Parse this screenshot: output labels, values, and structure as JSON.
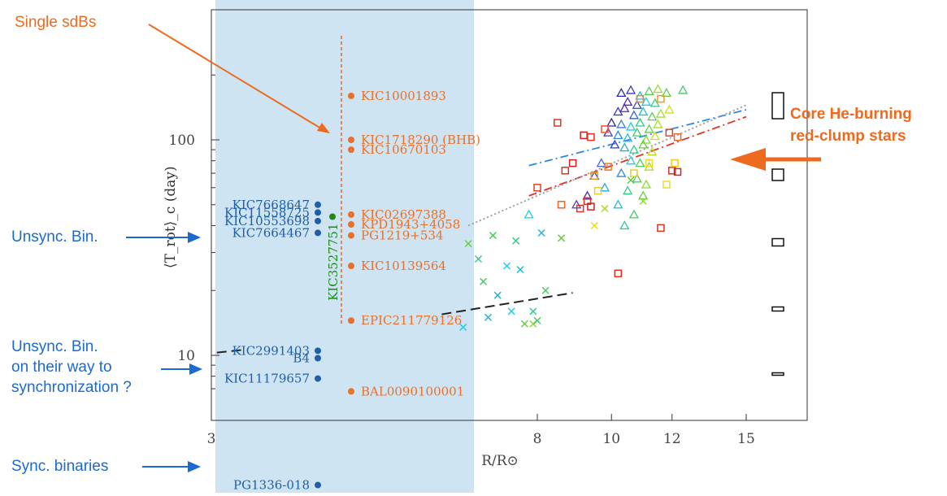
{
  "chart_data": {
    "type": "scatter",
    "xlabel": "R/R⊙",
    "ylabel": "⟨T_rot⟩_c (day)",
    "xscale": "log",
    "yscale": "log",
    "xlim": [
      3,
      18
    ],
    "ylim": [
      6.5,
      190
    ],
    "x_ticks": [
      {
        "value": 3,
        "label": "3"
      },
      {
        "value": 8,
        "label": "8"
      },
      {
        "value": 10,
        "label": "10"
      },
      {
        "value": 12,
        "label": "12"
      },
      {
        "value": 15,
        "label": "15"
      }
    ],
    "x_tick_suffix_label": "R/R⊙",
    "y_ticks": [
      {
        "value": 10,
        "label": "10"
      },
      {
        "value": 100,
        "label": "100"
      }
    ],
    "grid": false,
    "legend": "none",
    "highlight_band_color": "#cfe4f2",
    "single_sdbs": {
      "color": "#e8702a",
      "x_position_label": "sdB column",
      "stars": [
        {
          "name": "KIC10001893",
          "period": 160
        },
        {
          "name": "KIC1718290 (BHB)",
          "period": 100
        },
        {
          "name": "KIC10670103",
          "period": 90
        },
        {
          "name": "KIC02697388",
          "period": 45
        },
        {
          "name": "KPD1943+4058",
          "period": 40.5
        },
        {
          "name": "PG1219+534",
          "period": 36
        },
        {
          "name": "KIC10139564",
          "period": 26
        },
        {
          "name": "EPIC211779126",
          "period": 14.5
        },
        {
          "name": "BAL0090100001",
          "period": 6.8
        }
      ]
    },
    "binaries": {
      "color": "#1f5fa8",
      "stars": [
        {
          "name": "KIC7668647",
          "period": 50
        },
        {
          "name": "KIC11558725",
          "period": 46
        },
        {
          "name": "KIC10553698",
          "period": 42
        },
        {
          "name": "KIC7664467",
          "period": 37
        },
        {
          "name": "KIC2991403",
          "period": 10.5
        },
        {
          "name": "B4",
          "period": 9.7
        },
        {
          "name": "KIC11179657",
          "period": 7.8
        },
        {
          "name": "PG1336-018",
          "period": 2.5
        }
      ]
    },
    "green_star": {
      "name": "KIC3527751",
      "period": 44,
      "color": "#1a8a1a"
    },
    "red_clump_points": [
      {
        "x": 10.3,
        "y": 165,
        "m": "t",
        "c": "#2a2aa0"
      },
      {
        "x": 10.6,
        "y": 170,
        "m": "t",
        "c": "#3a3ac8"
      },
      {
        "x": 10.9,
        "y": 160,
        "m": "t",
        "c": "#22bbdd"
      },
      {
        "x": 11.2,
        "y": 168,
        "m": "t",
        "c": "#55cc55"
      },
      {
        "x": 11.5,
        "y": 172,
        "m": "t",
        "c": "#99dd33"
      },
      {
        "x": 11.8,
        "y": 165,
        "m": "t",
        "c": "#66cc44"
      },
      {
        "x": 12.4,
        "y": 170,
        "m": "t",
        "c": "#44cc66"
      },
      {
        "x": 10.5,
        "y": 150,
        "m": "t",
        "c": "#5a2ab0"
      },
      {
        "x": 10.8,
        "y": 145,
        "m": "t",
        "c": "#2a4ad0"
      },
      {
        "x": 11.1,
        "y": 150,
        "m": "t",
        "c": "#22ccee"
      },
      {
        "x": 11.4,
        "y": 148,
        "m": "t",
        "c": "#33cc88"
      },
      {
        "x": 10.2,
        "y": 135,
        "m": "t",
        "c": "#3a3ac8"
      },
      {
        "x": 10.4,
        "y": 140,
        "m": "t",
        "c": "#5a2ab0"
      },
      {
        "x": 10.7,
        "y": 130,
        "m": "t",
        "c": "#2a6ae0"
      },
      {
        "x": 11.0,
        "y": 135,
        "m": "t",
        "c": "#22bbdd"
      },
      {
        "x": 11.3,
        "y": 128,
        "m": "t",
        "c": "#55cc55"
      },
      {
        "x": 11.6,
        "y": 132,
        "m": "t",
        "c": "#99dd33"
      },
      {
        "x": 11.9,
        "y": 138,
        "m": "t",
        "c": "#ccdd22"
      },
      {
        "x": 10.0,
        "y": 120,
        "m": "t",
        "c": "#2a2aa0"
      },
      {
        "x": 10.3,
        "y": 118,
        "m": "t",
        "c": "#3a7ae0"
      },
      {
        "x": 10.6,
        "y": 115,
        "m": "t",
        "c": "#22ccee"
      },
      {
        "x": 10.9,
        "y": 120,
        "m": "t",
        "c": "#33cc88"
      },
      {
        "x": 11.2,
        "y": 112,
        "m": "t",
        "c": "#66cc44"
      },
      {
        "x": 11.5,
        "y": 118,
        "m": "t",
        "c": "#aadd22"
      },
      {
        "x": 9.9,
        "y": 108,
        "m": "t",
        "c": "#4a3ac0"
      },
      {
        "x": 10.2,
        "y": 105,
        "m": "t",
        "c": "#2a8ae0"
      },
      {
        "x": 10.5,
        "y": 102,
        "m": "t",
        "c": "#22bbdd"
      },
      {
        "x": 10.8,
        "y": 108,
        "m": "t",
        "c": "#44cc66"
      },
      {
        "x": 11.1,
        "y": 100,
        "m": "t",
        "c": "#88dd33"
      },
      {
        "x": 11.4,
        "y": 104,
        "m": "t",
        "c": "#ccdd22"
      },
      {
        "x": 10.1,
        "y": 95,
        "m": "t",
        "c": "#3a3ac8"
      },
      {
        "x": 10.4,
        "y": 92,
        "m": "t",
        "c": "#22aadd"
      },
      {
        "x": 10.7,
        "y": 90,
        "m": "t",
        "c": "#33cc88"
      },
      {
        "x": 11.0,
        "y": 95,
        "m": "t",
        "c": "#66cc44"
      },
      {
        "x": 11.3,
        "y": 88,
        "m": "t",
        "c": "#bbdd22"
      },
      {
        "x": 10.6,
        "y": 80,
        "m": "t",
        "c": "#22ccee"
      },
      {
        "x": 10.9,
        "y": 78,
        "m": "t",
        "c": "#55cc55"
      },
      {
        "x": 11.2,
        "y": 75,
        "m": "t",
        "c": "#99dd33"
      },
      {
        "x": 10.3,
        "y": 70,
        "m": "t",
        "c": "#2a8ae0"
      },
      {
        "x": 10.8,
        "y": 66,
        "m": "t",
        "c": "#44cc66"
      },
      {
        "x": 11.1,
        "y": 62,
        "m": "t",
        "c": "#88dd33"
      },
      {
        "x": 10.5,
        "y": 58,
        "m": "t",
        "c": "#33cc88"
      },
      {
        "x": 11.0,
        "y": 55,
        "m": "t",
        "c": "#66cc44"
      },
      {
        "x": 10.2,
        "y": 50,
        "m": "t",
        "c": "#22bbdd"
      },
      {
        "x": 10.7,
        "y": 45,
        "m": "t",
        "c": "#44cc66"
      },
      {
        "x": 10.4,
        "y": 40,
        "m": "t",
        "c": "#33cc88"
      },
      {
        "x": 9.3,
        "y": 55,
        "m": "t",
        "c": "#4a2ab0"
      },
      {
        "x": 9.0,
        "y": 50,
        "m": "t",
        "c": "#5a3ac8"
      },
      {
        "x": 9.5,
        "y": 68,
        "m": "t",
        "c": "#2a4ad0"
      },
      {
        "x": 9.8,
        "y": 60,
        "m": "t",
        "c": "#22aadd"
      },
      {
        "x": 9.7,
        "y": 78,
        "m": "t",
        "c": "#3a6ae0"
      },
      {
        "x": 7.8,
        "y": 45,
        "m": "t",
        "c": "#22ccee"
      },
      {
        "x": 10.9,
        "y": 155,
        "m": "s",
        "c": "#ee8822"
      },
      {
        "x": 11.6,
        "y": 155,
        "m": "s",
        "c": "#ee9922"
      },
      {
        "x": 8.5,
        "y": 120,
        "m": "s",
        "c": "#dd3322"
      },
      {
        "x": 9.2,
        "y": 105,
        "m": "s",
        "c": "#cc2222"
      },
      {
        "x": 9.4,
        "y": 103,
        "m": "s",
        "c": "#dd3322"
      },
      {
        "x": 9.8,
        "y": 112,
        "m": "s",
        "c": "#ee5522"
      },
      {
        "x": 11.9,
        "y": 108,
        "m": "s",
        "c": "#dd4422"
      },
      {
        "x": 12.2,
        "y": 103,
        "m": "s",
        "c": "#ee6622"
      },
      {
        "x": 8.9,
        "y": 78,
        "m": "s",
        "c": "#cc2222"
      },
      {
        "x": 8.7,
        "y": 72,
        "m": "s",
        "c": "#dd3322"
      },
      {
        "x": 9.9,
        "y": 75,
        "m": "s",
        "c": "#ee7722"
      },
      {
        "x": 10.7,
        "y": 70,
        "m": "s",
        "c": "#eecc22"
      },
      {
        "x": 11.2,
        "y": 78,
        "m": "s",
        "c": "#eedd22"
      },
      {
        "x": 12.0,
        "y": 72,
        "m": "s",
        "c": "#dd3322"
      },
      {
        "x": 12.2,
        "y": 71,
        "m": "s",
        "c": "#cc2222"
      },
      {
        "x": 12.1,
        "y": 78,
        "m": "s",
        "c": "#eecc22"
      },
      {
        "x": 9.5,
        "y": 68,
        "m": "s",
        "c": "#ee9922"
      },
      {
        "x": 8.0,
        "y": 60,
        "m": "s",
        "c": "#dd4422"
      },
      {
        "x": 9.3,
        "y": 52,
        "m": "s",
        "c": "#dd3322"
      },
      {
        "x": 9.4,
        "y": 49,
        "m": "s",
        "c": "#cc2222"
      },
      {
        "x": 9.1,
        "y": 48,
        "m": "s",
        "c": "#dd3322"
      },
      {
        "x": 8.6,
        "y": 50,
        "m": "s",
        "c": "#ee6622"
      },
      {
        "x": 11.6,
        "y": 39,
        "m": "s",
        "c": "#dd3322"
      },
      {
        "x": 11.8,
        "y": 62,
        "m": "s",
        "c": "#eedd22"
      },
      {
        "x": 10.2,
        "y": 24,
        "m": "s",
        "c": "#dd3322"
      },
      {
        "x": 9.6,
        "y": 58,
        "m": "s",
        "c": "#eecc22"
      },
      {
        "x": 6.5,
        "y": 33,
        "m": "x",
        "c": "#66cc44"
      },
      {
        "x": 7.0,
        "y": 36,
        "m": "x",
        "c": "#44cc66"
      },
      {
        "x": 7.5,
        "y": 34,
        "m": "x",
        "c": "#33cc88"
      },
      {
        "x": 8.1,
        "y": 37,
        "m": "x",
        "c": "#22bbdd"
      },
      {
        "x": 8.6,
        "y": 35,
        "m": "x",
        "c": "#66cc44"
      },
      {
        "x": 6.7,
        "y": 28,
        "m": "x",
        "c": "#33cc88"
      },
      {
        "x": 7.3,
        "y": 26,
        "m": "x",
        "c": "#22ccee"
      },
      {
        "x": 7.6,
        "y": 25,
        "m": "x",
        "c": "#22bbdd"
      },
      {
        "x": 6.8,
        "y": 22,
        "m": "x",
        "c": "#44cc66"
      },
      {
        "x": 7.1,
        "y": 19,
        "m": "x",
        "c": "#22aadd"
      },
      {
        "x": 8.2,
        "y": 20,
        "m": "x",
        "c": "#44cc66"
      },
      {
        "x": 7.9,
        "y": 16,
        "m": "x",
        "c": "#33cc88"
      },
      {
        "x": 7.4,
        "y": 16,
        "m": "x",
        "c": "#22ccee"
      },
      {
        "x": 6.9,
        "y": 15,
        "m": "x",
        "c": "#22bbdd"
      },
      {
        "x": 7.7,
        "y": 14,
        "m": "x",
        "c": "#66cc44"
      },
      {
        "x": 7.9,
        "y": 14,
        "m": "x",
        "c": "#88dd33"
      },
      {
        "x": 8.0,
        "y": 14.5,
        "m": "x",
        "c": "#44cc66"
      },
      {
        "x": 6.4,
        "y": 13.5,
        "m": "x",
        "c": "#22ccee"
      },
      {
        "x": 9.5,
        "y": 40,
        "m": "x",
        "c": "#eedd22"
      },
      {
        "x": 9.8,
        "y": 48,
        "m": "x",
        "c": "#aadd22"
      },
      {
        "x": 10.6,
        "y": 65,
        "m": "x",
        "c": "#66cc44"
      },
      {
        "x": 11.0,
        "y": 52,
        "m": "x",
        "c": "#88dd33"
      }
    ],
    "fit_lines": [
      {
        "style": "dash-dot",
        "color": "#2a8ae0",
        "points": [
          [
            7.8,
            76
          ],
          [
            15,
            138
          ]
        ]
      },
      {
        "style": "dash-dot",
        "color": "#dd3322",
        "points": [
          [
            7.8,
            55
          ],
          [
            15,
            128
          ]
        ]
      },
      {
        "style": "dotted",
        "color": "#999999",
        "points": [
          [
            6.5,
            40
          ],
          [
            15,
            145
          ]
        ]
      },
      {
        "style": "dashed",
        "color": "#222222",
        "points": [
          [
            6.0,
            15.5
          ],
          [
            8.9,
            19.5
          ]
        ]
      },
      {
        "style": "dashed",
        "color": "#222222",
        "points": [
          [
            3.05,
            10.3
          ],
          [
            3.3,
            10.6
          ]
        ]
      }
    ],
    "size_legend": [
      {
        "label": "",
        "w": 14,
        "h": 32
      },
      {
        "label": "",
        "w": 14,
        "h": 14
      },
      {
        "label": "",
        "w": 14,
        "h": 9
      },
      {
        "label": "",
        "w": 14,
        "h": 5
      },
      {
        "label": "",
        "w": 14,
        "h": 3
      }
    ]
  },
  "annotations": {
    "single_sdbs": {
      "text": "Single sdBs",
      "color": "#ee6a1e"
    },
    "core_he": {
      "line1": "Core He-burning",
      "line2": "red-clump stars",
      "color": "#ee6a1e"
    },
    "unsync_bin": {
      "text": "Unsync. Bin.",
      "color": "#1a6ad0"
    },
    "unsync_way": {
      "line1": "Unsync. Bin.",
      "line2": "on their way to",
      "line3": "synchronization ?",
      "color": "#1a6ad0"
    },
    "sync_binaries": {
      "text": "Sync. binaries",
      "color": "#1a6ad0"
    }
  }
}
